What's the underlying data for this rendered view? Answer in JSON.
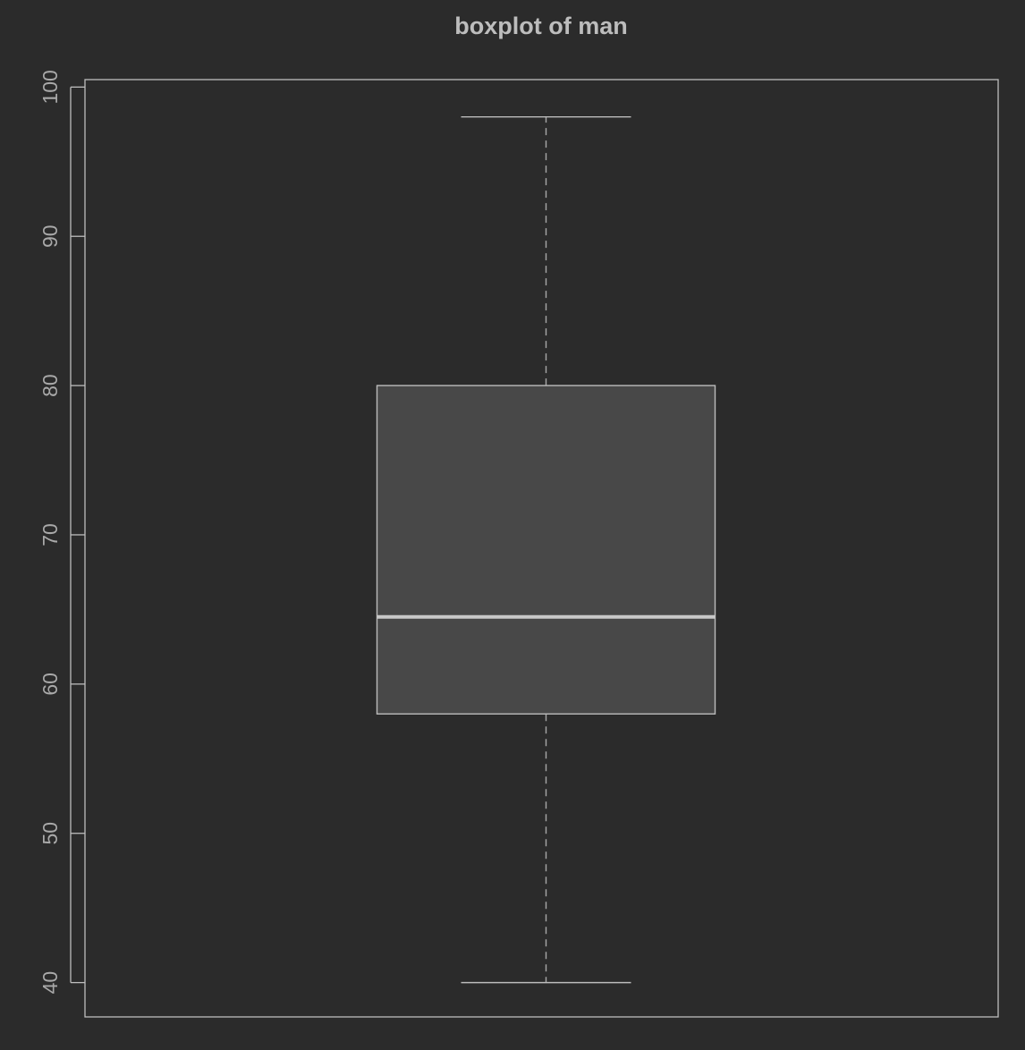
{
  "chart_data": {
    "type": "boxplot",
    "title": "boxplot of man",
    "xlabel": "",
    "ylabel": "",
    "ylim": [
      37.7,
      100.5
    ],
    "y_ticks": [
      40,
      50,
      60,
      70,
      80,
      90,
      100
    ],
    "y_tick_labels": [
      "40",
      "50",
      "60",
      "70",
      "80",
      "90",
      "100"
    ],
    "grid": false,
    "legend": "none",
    "boxes": [
      {
        "whisker_low": 40,
        "q1": 58,
        "median": 64.5,
        "q3": 80,
        "whisker_high": 98
      }
    ],
    "colors": {
      "background": "#2b2b2b",
      "box_fill": "#484848",
      "box_stroke": "#bcbcbc",
      "median": "#c8c8c8",
      "whisker": "#a8a8a8",
      "axis": "#bdbdbd",
      "title": "#bdbdbd",
      "tick_text": "#a9a9a9"
    }
  }
}
